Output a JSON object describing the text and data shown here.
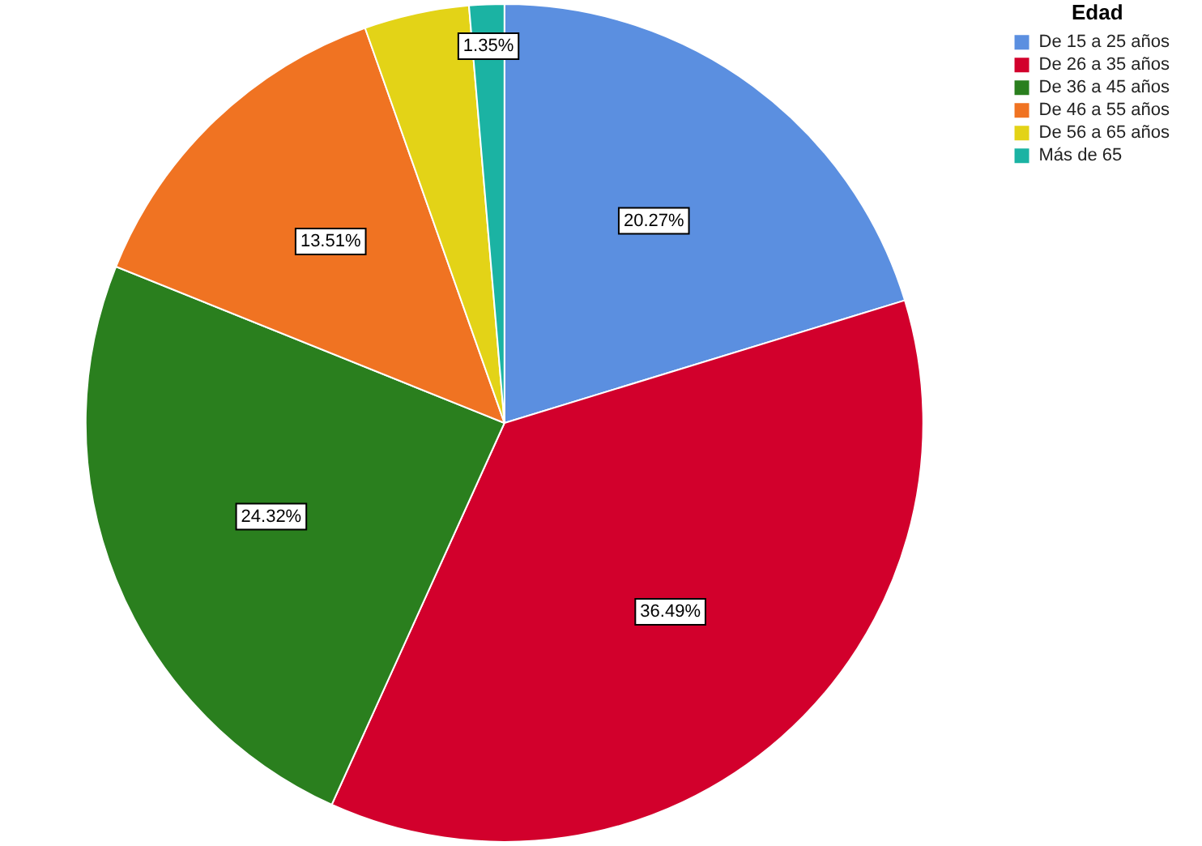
{
  "chart_data": {
    "type": "pie",
    "legend_title": "Edad",
    "legend": "top right",
    "categories": [
      "De 15 a 25 años",
      "De 26 a 35 años",
      "De 36 a 45 años",
      "De 46 a 55 años",
      "De 56 a 65 años",
      "Más de 65"
    ],
    "values": [
      20.27,
      36.49,
      24.32,
      13.51,
      4.05,
      1.35
    ],
    "colors": [
      "#5b8fe0",
      "#d2002c",
      "#2a7f1e",
      "#f07322",
      "#e3d317",
      "#1bb3a3"
    ],
    "value_labels": [
      "20.27%",
      "36.49%",
      "24.32%",
      "13.51%",
      null,
      "1.35%"
    ]
  }
}
